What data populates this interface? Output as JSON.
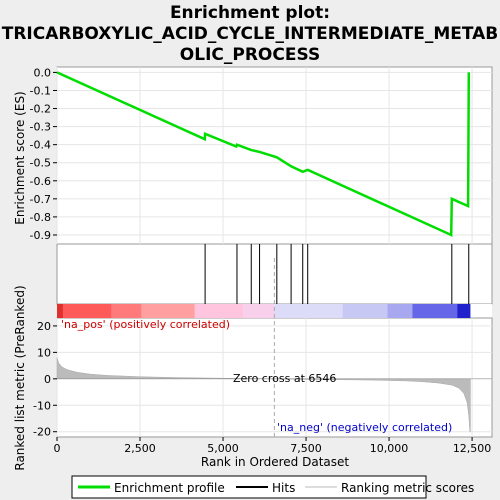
{
  "chart_data": {
    "type": "line",
    "title_lines": [
      "Enrichment plot:",
      "TRICARBOXYLIC_ACID_CYCLE_INTERMEDIATE_METAB",
      "OLIC_PROCESS"
    ],
    "es_panel": {
      "ylabel": "Enrichment score (ES)",
      "ylim": [
        -0.95,
        0.03
      ],
      "yticks": [
        0.0,
        -0.1,
        -0.2,
        -0.3,
        -0.4,
        -0.5,
        -0.6,
        -0.7,
        -0.8,
        -0.9
      ],
      "ytick_labels": [
        "0.0",
        "-0.1",
        "-0.2",
        "-0.3",
        "-0.4",
        "-0.5",
        "-0.6",
        "-0.7",
        "-0.8",
        "-0.9"
      ],
      "series": [
        {
          "name": "Enrichment profile",
          "color": "#00dd00",
          "x": [
            0,
            4450,
            4460,
            5400,
            5420,
            5850,
            6100,
            6620,
            7050,
            7400,
            7550,
            11870,
            11890,
            12380,
            12400
          ],
          "y": [
            0.0,
            -0.37,
            -0.34,
            -0.41,
            -0.4,
            -0.43,
            -0.44,
            -0.47,
            -0.52,
            -0.55,
            -0.54,
            -0.9,
            -0.7,
            -0.74,
            0.0
          ]
        }
      ]
    },
    "hits": {
      "name": "Hits",
      "color": "#000000",
      "positions": [
        4460,
        5420,
        5850,
        6100,
        6620,
        7050,
        7400,
        7550,
        11890,
        12400
      ]
    },
    "ranked_panel": {
      "ylabel": "Ranked list metric (PreRanked)",
      "ylim": [
        -22,
        23
      ],
      "yticks": [
        20,
        10,
        0,
        -10,
        -20
      ],
      "ytick_labels": [
        "20",
        "10",
        "0",
        "-10",
        "-20"
      ],
      "series_name": "Ranking metric scores",
      "color": "#bbbbbb",
      "x": [
        0,
        50,
        150,
        300,
        600,
        1000,
        1500,
        2500,
        3500,
        4500,
        5500,
        6546,
        7500,
        8500,
        9500,
        10500,
        11000,
        11500,
        11900,
        12100,
        12250,
        12350,
        12400,
        12430,
        12450
      ],
      "y": [
        8,
        6,
        4.5,
        3.5,
        2.5,
        1.8,
        1.3,
        0.8,
        0.5,
        0.3,
        0.15,
        0,
        -0.2,
        -0.35,
        -0.5,
        -0.8,
        -1.1,
        -1.6,
        -2.4,
        -3.5,
        -5.5,
        -9,
        -14,
        -20,
        -20
      ],
      "pos_label": "'na_pos' (positively correlated)",
      "neg_label": "'na_neg' (negatively correlated)",
      "zero_cross_label": "Zero cross at 6546",
      "zero_cross": 6546,
      "pos_color": "#ff0000",
      "neg_color": "#0000cc"
    },
    "x_axis": {
      "label": "Rank in Ordered Dataset",
      "xlim": [
        0,
        13100
      ],
      "ticks": [
        0,
        2500,
        5000,
        7500,
        10000,
        12500
      ],
      "tick_labels": [
        "0",
        "2,500",
        "5,000",
        "7,500",
        "10,000",
        "12,500"
      ]
    },
    "color_bar": {
      "segments": [
        {
          "x0": 0,
          "x1": 180,
          "color": "#e0302e"
        },
        {
          "x0": 180,
          "x1": 1650,
          "color": "#ff5a5a"
        },
        {
          "x0": 1650,
          "x1": 2550,
          "color": "#ff7b7b"
        },
        {
          "x0": 2550,
          "x1": 4150,
          "color": "#ff9f9f"
        },
        {
          "x0": 4150,
          "x1": 5600,
          "color": "#ffc4de"
        },
        {
          "x0": 5600,
          "x1": 6546,
          "color": "#f8d0ec"
        },
        {
          "x0": 6546,
          "x1": 8600,
          "color": "#dcdcf8"
        },
        {
          "x0": 8600,
          "x1": 9950,
          "color": "#c8c8f4"
        },
        {
          "x0": 9950,
          "x1": 10700,
          "color": "#a8a8f0"
        },
        {
          "x0": 10700,
          "x1": 12050,
          "color": "#6666e8"
        },
        {
          "x0": 12050,
          "x1": 12450,
          "color": "#2222cc"
        }
      ]
    },
    "legend": {
      "items": [
        {
          "label": "Enrichment profile",
          "color": "#00dd00"
        },
        {
          "label": "Hits",
          "color": "#000000"
        },
        {
          "label": "Ranking metric scores",
          "color": "#bbbbbb"
        }
      ]
    }
  }
}
